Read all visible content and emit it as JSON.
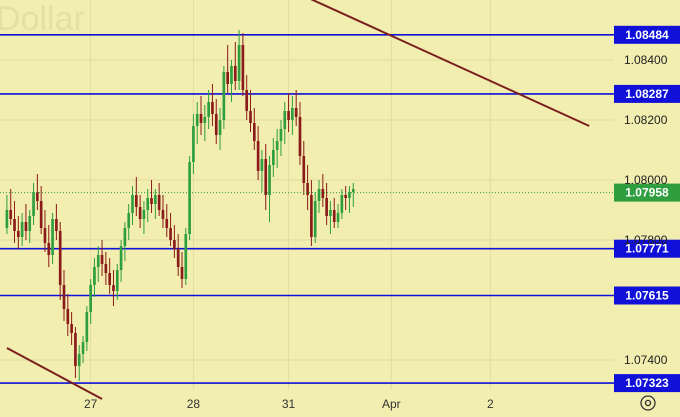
{
  "chart_data": {
    "type": "candlestick",
    "title": "Dollar",
    "watermark": "Dollar",
    "y_range": [
      1.073,
      1.086
    ],
    "y_ticks": [
      "1.08400",
      "1.08200",
      "1.08000",
      "1.07800",
      "1.07400"
    ],
    "x_ticks": [
      "27",
      "28",
      "31",
      "Apr",
      "2"
    ],
    "horizontal_levels": [
      {
        "value": 1.08484,
        "label": "1.08484"
      },
      {
        "value": 1.08287,
        "label": "1.08287"
      },
      {
        "value": 1.07771,
        "label": "1.07771"
      },
      {
        "value": 1.07615,
        "label": "1.07615"
      },
      {
        "value": 1.07323,
        "label": "1.07323"
      }
    ],
    "current_price": {
      "value": 1.07958,
      "label": "1.07958"
    },
    "trendlines": [
      {
        "from_bar": 0,
        "from_price": 1.0744,
        "to_bar": 25,
        "to_price": 1.0727
      },
      {
        "from_bar": 70,
        "from_price": 1.0866,
        "to_bar": 153,
        "to_price": 1.0818
      }
    ],
    "candles": [
      [
        1.0784,
        1.0795,
        1.0782,
        1.079
      ],
      [
        1.079,
        1.0797,
        1.0785,
        1.0787
      ],
      [
        1.0787,
        1.0793,
        1.0779,
        1.0783
      ],
      [
        1.0783,
        1.0788,
        1.0777,
        1.0781
      ],
      [
        1.0781,
        1.0789,
        1.0778,
        1.0786
      ],
      [
        1.0786,
        1.0792,
        1.078,
        1.0783
      ],
      [
        1.0783,
        1.079,
        1.0779,
        1.0788
      ],
      [
        1.0788,
        1.0799,
        1.0785,
        1.0796
      ],
      [
        1.0796,
        1.0802,
        1.079,
        1.0793
      ],
      [
        1.0793,
        1.0798,
        1.0782,
        1.0784
      ],
      [
        1.0784,
        1.079,
        1.0776,
        1.0779
      ],
      [
        1.0779,
        1.0785,
        1.0771,
        1.0775
      ],
      [
        1.0775,
        1.0789,
        1.0772,
        1.0787
      ],
      [
        1.0787,
        1.0792,
        1.078,
        1.0783
      ],
      [
        1.0783,
        1.0786,
        1.076,
        1.0765
      ],
      [
        1.0765,
        1.077,
        1.0753,
        1.0757
      ],
      [
        1.0757,
        1.0762,
        1.0748,
        1.0752
      ],
      [
        1.0752,
        1.0756,
        1.0745,
        1.0749
      ],
      [
        1.0749,
        1.0751,
        1.0734,
        1.0738
      ],
      [
        1.0738,
        1.0745,
        1.0733,
        1.0742
      ],
      [
        1.0742,
        1.0748,
        1.0739,
        1.0746
      ],
      [
        1.0746,
        1.0758,
        1.0743,
        1.0756
      ],
      [
        1.0756,
        1.0767,
        1.0752,
        1.0765
      ],
      [
        1.0765,
        1.0774,
        1.0761,
        1.0771
      ],
      [
        1.0771,
        1.0778,
        1.0766,
        1.0775
      ],
      [
        1.0775,
        1.078,
        1.0768,
        1.0772
      ],
      [
        1.0772,
        1.0776,
        1.0765,
        1.0769
      ],
      [
        1.0769,
        1.0774,
        1.0762,
        1.0765
      ],
      [
        1.0765,
        1.077,
        1.0758,
        1.0763
      ],
      [
        1.0763,
        1.0772,
        1.076,
        1.077
      ],
      [
        1.077,
        1.078,
        1.0766,
        1.0778
      ],
      [
        1.0778,
        1.0786,
        1.0773,
        1.0784
      ],
      [
        1.0784,
        1.0792,
        1.078,
        1.0789
      ],
      [
        1.0789,
        1.0798,
        1.0785,
        1.0795
      ],
      [
        1.0795,
        1.0801,
        1.0788,
        1.0791
      ],
      [
        1.0791,
        1.0795,
        1.0784,
        1.0787
      ],
      [
        1.0787,
        1.0793,
        1.0782,
        1.079
      ],
      [
        1.079,
        1.0797,
        1.0786,
        1.0794
      ],
      [
        1.0794,
        1.08,
        1.0789,
        1.0792
      ],
      [
        1.0792,
        1.0797,
        1.0787,
        1.0795
      ],
      [
        1.0795,
        1.0799,
        1.0788,
        1.079
      ],
      [
        1.079,
        1.0795,
        1.0784,
        1.0787
      ],
      [
        1.0787,
        1.0792,
        1.0781,
        1.0784
      ],
      [
        1.0784,
        1.0789,
        1.0778,
        1.078
      ],
      [
        1.078,
        1.0785,
        1.0774,
        1.0777
      ],
      [
        1.0777,
        1.0782,
        1.0768,
        1.0771
      ],
      [
        1.0771,
        1.0776,
        1.0764,
        1.0767
      ],
      [
        1.0767,
        1.0784,
        1.0765,
        1.0782
      ],
      [
        1.0782,
        1.0808,
        1.078,
        1.0806
      ],
      [
        1.0806,
        1.0822,
        1.0802,
        1.0818
      ],
      [
        1.0818,
        1.0826,
        1.0812,
        1.0822
      ],
      [
        1.0822,
        1.0828,
        1.0815,
        1.0819
      ],
      [
        1.0819,
        1.0825,
        1.0813,
        1.0821
      ],
      [
        1.0821,
        1.083,
        1.0817,
        1.0826
      ],
      [
        1.0826,
        1.0832,
        1.0818,
        1.0822
      ],
      [
        1.0822,
        1.0827,
        1.0812,
        1.0815
      ],
      [
        1.0815,
        1.0824,
        1.081,
        1.082
      ],
      [
        1.082,
        1.0838,
        1.0817,
        1.0836
      ],
      [
        1.0836,
        1.0845,
        1.0829,
        1.0832
      ],
      [
        1.0832,
        1.084,
        1.0826,
        1.0838
      ],
      [
        1.0838,
        1.0846,
        1.083,
        1.0833
      ],
      [
        1.0833,
        1.085,
        1.083,
        1.0845
      ],
      [
        1.0845,
        1.0849,
        1.0828,
        1.083
      ],
      [
        1.083,
        1.0835,
        1.082,
        1.0823
      ],
      [
        1.0823,
        1.083,
        1.0816,
        1.0819
      ],
      [
        1.0819,
        1.0824,
        1.081,
        1.0813
      ],
      [
        1.0813,
        1.0818,
        1.08,
        1.0803
      ],
      [
        1.0803,
        1.081,
        1.0796,
        1.0807
      ],
      [
        1.0807,
        1.0812,
        1.079,
        1.0795
      ],
      [
        1.0795,
        1.0808,
        1.0786,
        1.0805
      ],
      [
        1.0805,
        1.0814,
        1.0801,
        1.081
      ],
      [
        1.081,
        1.0817,
        1.0804,
        1.0813
      ],
      [
        1.0813,
        1.082,
        1.0808,
        1.0817
      ],
      [
        1.0817,
        1.0826,
        1.0812,
        1.0823
      ],
      [
        1.0823,
        1.0829,
        1.0816,
        1.082
      ],
      [
        1.082,
        1.0828,
        1.0815,
        1.0824
      ],
      [
        1.0824,
        1.083,
        1.0818,
        1.0821
      ],
      [
        1.0821,
        1.0826,
        1.0805,
        1.0808
      ],
      [
        1.0808,
        1.0813,
        1.0795,
        1.0799
      ],
      [
        1.0799,
        1.0805,
        1.079,
        1.0795
      ],
      [
        1.0795,
        1.08,
        1.0778,
        1.0781
      ],
      [
        1.0781,
        1.0796,
        1.0779,
        1.0793
      ],
      [
        1.0793,
        1.08,
        1.0789,
        1.0797
      ],
      [
        1.0797,
        1.0802,
        1.0791,
        1.0794
      ],
      [
        1.0794,
        1.0799,
        1.0785,
        1.0788
      ],
      [
        1.0788,
        1.0793,
        1.0782,
        1.079
      ],
      [
        1.079,
        1.0794,
        1.0784,
        1.0786
      ],
      [
        1.0786,
        1.0792,
        1.0784,
        1.0789
      ],
      [
        1.0789,
        1.0797,
        1.0787,
        1.0795
      ],
      [
        1.0795,
        1.0798,
        1.079,
        1.0794
      ],
      [
        1.0794,
        1.0798,
        1.0789,
        1.0796
      ],
      [
        1.0796,
        1.0799,
        1.0791,
        1.0797
      ]
    ]
  }
}
